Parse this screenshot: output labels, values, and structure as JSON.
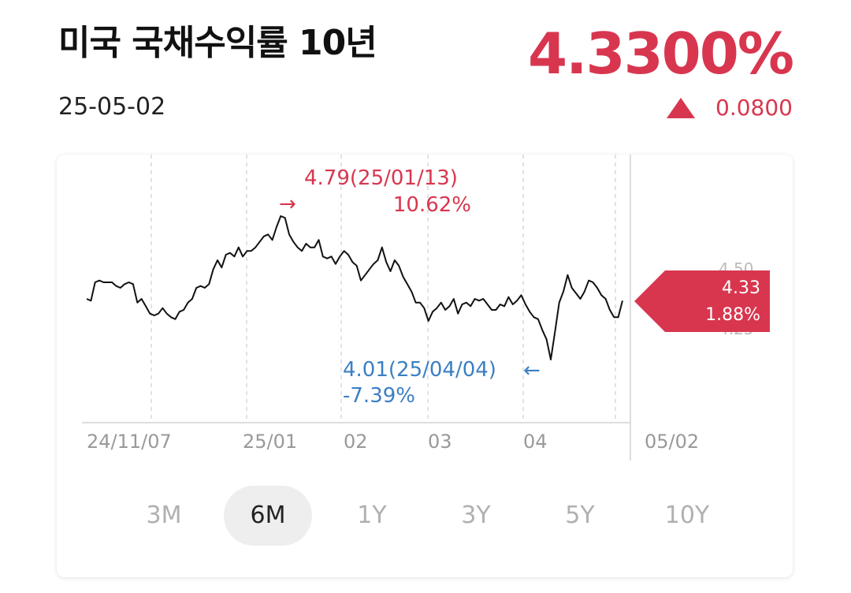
{
  "header": {
    "title": "미국 국채수익률 10년",
    "date": "25-05-02",
    "price": "4.3300%",
    "change_value": "0.0800",
    "change_direction_icon": "triangle-up-icon",
    "accent_up": "#d8364f",
    "accent_down": "#3b7fc4"
  },
  "chart": {
    "high_label_line1": "4.79(25/01/13)",
    "high_label_line2": "10.62%",
    "low_label_line1": "4.01(25/04/04)",
    "low_label_line2": "-7.39%",
    "current_value": "4.33",
    "current_pct": "1.88%",
    "right_axis_top": "4.50",
    "right_axis_bottom": "4.25",
    "x_labels": [
      "24/11/07",
      "25/01",
      "02",
      "03",
      "04",
      "05/02"
    ]
  },
  "chart_data": {
    "type": "line",
    "series": [
      {
        "values": [
          4.34,
          4.33,
          4.43,
          4.44,
          4.43,
          4.43,
          4.43,
          4.41,
          4.4,
          4.42,
          4.43,
          4.42,
          4.32,
          4.34,
          4.3,
          4.26,
          4.25,
          4.26,
          4.29,
          4.26,
          4.24,
          4.23,
          4.27,
          4.28,
          4.32,
          4.34,
          4.4,
          4.41,
          4.4,
          4.42,
          4.5,
          4.55,
          4.51,
          4.58,
          4.59,
          4.57,
          4.62,
          4.57,
          4.6,
          4.6,
          4.62,
          4.65,
          4.68,
          4.69,
          4.66,
          4.73,
          4.79,
          4.78,
          4.69,
          4.65,
          4.62,
          4.6,
          4.64,
          4.62,
          4.62,
          4.66,
          4.57,
          4.56,
          4.57,
          4.53,
          4.57,
          4.6,
          4.58,
          4.54,
          4.52,
          4.44,
          4.47,
          4.5,
          4.53,
          4.55,
          4.62,
          4.54,
          4.49,
          4.55,
          4.52,
          4.46,
          4.42,
          4.38,
          4.32,
          4.32,
          4.29,
          4.22,
          4.27,
          4.29,
          4.32,
          4.28,
          4.3,
          4.34,
          4.26,
          4.31,
          4.32,
          4.3,
          4.34,
          4.33,
          4.34,
          4.31,
          4.28,
          4.28,
          4.31,
          4.3,
          4.35,
          4.31,
          4.33,
          4.36,
          4.31,
          4.27,
          4.24,
          4.23,
          4.17,
          4.12,
          4.01,
          4.16,
          4.32,
          4.38,
          4.47,
          4.4,
          4.37,
          4.34,
          4.38,
          4.44,
          4.43,
          4.4,
          4.36,
          4.34,
          4.28,
          4.24,
          4.24,
          4.33
        ]
      }
    ],
    "x_labels": [
      "24/11/07",
      "25/01",
      "02",
      "03",
      "04",
      "05/02"
    ],
    "high": {
      "value": 4.79,
      "date": "25/01/13",
      "pct": "10.62%"
    },
    "low": {
      "value": 4.01,
      "date": "25/04/04",
      "pct": "-7.39%"
    },
    "last": 4.33,
    "ylim": [
      3.9,
      4.9
    ],
    "grid": "vertical-dashed"
  },
  "tabs": [
    {
      "label": "3M",
      "active": false
    },
    {
      "label": "6M",
      "active": true
    },
    {
      "label": "1Y",
      "active": false
    },
    {
      "label": "3Y",
      "active": false
    },
    {
      "label": "5Y",
      "active": false
    },
    {
      "label": "10Y",
      "active": false
    }
  ]
}
